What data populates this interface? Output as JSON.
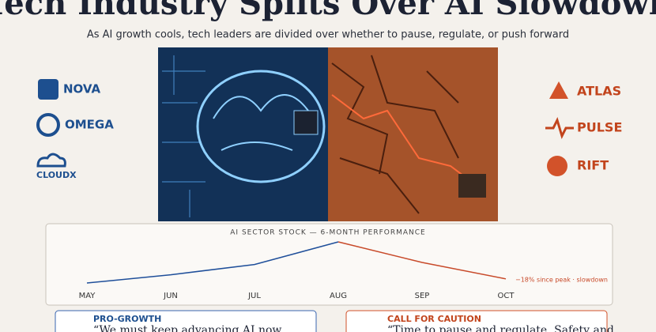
{
  "header": {
    "title": "Tech Industry Splits Over AI Slowdown",
    "subtitle": "As AI growth cools, tech leaders are divided over whether to pause, regulate, or push forward"
  },
  "logos_left": [
    "NOVA",
    "OMEGA",
    "CLOUDX"
  ],
  "logos_right": [
    "ATLAS",
    "PULSE",
    "RIFT"
  ],
  "chart_data": {
    "type": "line",
    "title": "AI SECTOR STOCK — 6-MONTH PERFORMANCE",
    "categories": [
      "MAY",
      "JUN",
      "JUL",
      "AUG",
      "SEP",
      "OCT"
    ],
    "series": [
      {
        "color": "#1f4f9a",
        "values": [
          80,
          84,
          89,
          100,
          null,
          null
        ]
      },
      {
        "color": "#c84a2a",
        "values": [
          null,
          null,
          null,
          100,
          90,
          82
        ]
      }
    ],
    "annotation": "−18% since peak · slowdown"
  },
  "panels": [
    {
      "heading": "PRO-GROWTH",
      "quote": "“We must keep advancing AI now"
    },
    {
      "heading": "CALL FOR CAUTION",
      "quote": "“Time to pause and regulate. Safety and"
    }
  ]
}
